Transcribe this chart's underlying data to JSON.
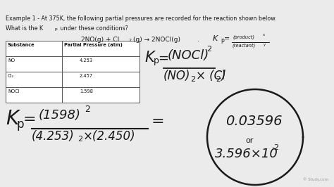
{
  "bg_color": "#ebebeb",
  "text_color": "#1a1a1a",
  "table_headers": [
    "Substance",
    "Partial Pressure (atm)"
  ],
  "table_data": [
    [
      "NO",
      "4.253"
    ],
    [
      "Cl₂",
      "2.457"
    ],
    [
      "NOCl",
      "1.598"
    ]
  ],
  "watermark": "© Study.com",
  "line1": "Example 1 - At 375K, the following partial pressures are recorded for the reaction shown below.",
  "line2_a": "What is the K",
  "line2_b": "p",
  "line2_c": " under these conditions?"
}
